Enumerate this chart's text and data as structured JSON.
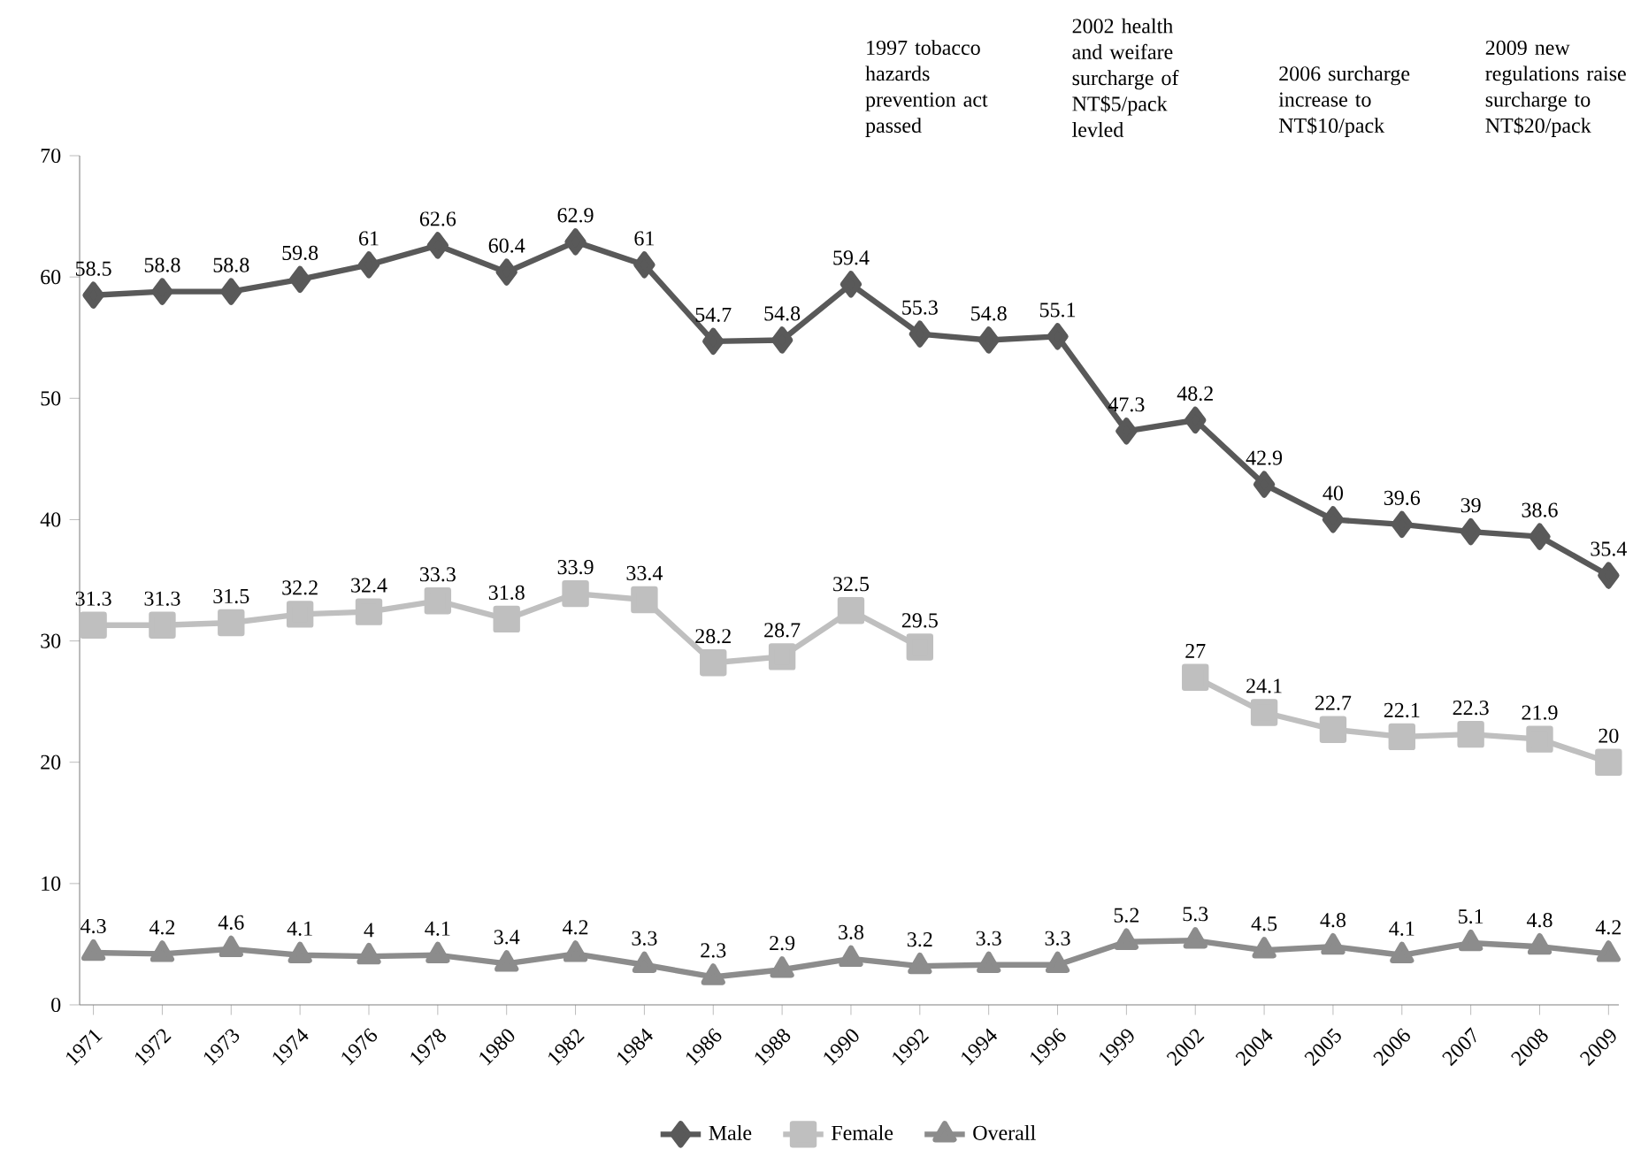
{
  "chart_data": {
    "type": "line",
    "categories": [
      "1971",
      "1972",
      "1973",
      "1974",
      "1976",
      "1978",
      "1980",
      "1982",
      "1984",
      "1986",
      "1988",
      "1990",
      "1992",
      "1994",
      "1996",
      "1999",
      "2002",
      "2004",
      "2005",
      "2006",
      "2007",
      "2008",
      "2009"
    ],
    "series": [
      {
        "name": "Male",
        "color": "#595959",
        "marker": "diamond",
        "values": [
          58.5,
          58.8,
          58.8,
          59.8,
          61,
          62.6,
          60.4,
          62.9,
          61,
          54.7,
          54.8,
          59.4,
          55.3,
          54.8,
          55.1,
          47.3,
          48.2,
          42.9,
          40,
          39.6,
          39,
          38.6,
          35.4
        ]
      },
      {
        "name": "Female",
        "color": "#bfbfbf",
        "marker": "square",
        "values": [
          31.3,
          31.3,
          31.5,
          32.2,
          32.4,
          33.3,
          31.8,
          33.9,
          33.4,
          28.2,
          28.7,
          32.5,
          29.5,
          null,
          null,
          null,
          27,
          24.1,
          22.7,
          22.1,
          22.3,
          21.9,
          20
        ]
      },
      {
        "name": "Overall",
        "color": "#8c8c8c",
        "marker": "triangle",
        "values": [
          4.3,
          4.2,
          4.6,
          4.1,
          4,
          4.1,
          3.4,
          4.2,
          3.3,
          2.3,
          2.9,
          3.8,
          3.2,
          3.3,
          3.3,
          5.2,
          5.3,
          4.5,
          4.8,
          4.1,
          5.1,
          4.8,
          4.2
        ]
      }
    ],
    "ylim": [
      0,
      70
    ],
    "yticks": [
      0,
      10,
      20,
      30,
      40,
      50,
      60,
      70
    ],
    "grid": false,
    "legend": "bottom",
    "data_labels": true,
    "line_style": "solid",
    "annotations": [
      "1997 tobacco hazards prevention act passed",
      "2002 health and weifare surcharge of NT$5/pack levled",
      "2006 surcharge increase to NT$10/pack",
      "2009 new regulations raise surcharge to NT$20/pack"
    ]
  }
}
